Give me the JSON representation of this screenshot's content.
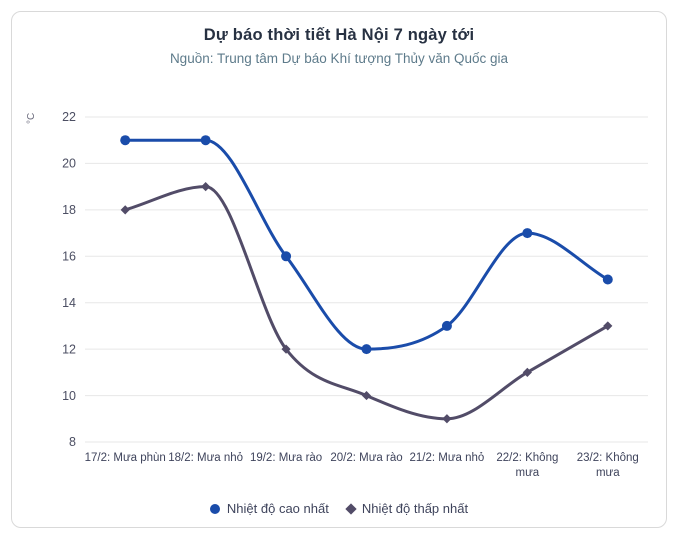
{
  "card": {
    "title": "Dự báo thời tiết Hà Nội 7 ngày tới",
    "subtitle": "Nguồn: Trung tâm Dự báo Khí tượng Thủy văn Quốc gia"
  },
  "chart_data": {
    "type": "line",
    "title": "Dự báo thời tiết Hà Nội 7 ngày tới",
    "subtitle": "Nguồn: Trung tâm Dự báo Khí tượng Thủy văn Quốc gia",
    "categories": [
      "17/2: Mưa phùn",
      "18/2: Mưa nhỏ",
      "19/2: Mưa rào",
      "20/2: Mưa rào",
      "21/2: Mưa nhỏ",
      "22/2: Không mưa",
      "23/2: Không mưa"
    ],
    "category_display_lines": [
      [
        "17/2: Mưa phùn"
      ],
      [
        "18/2: Mưa nhỏ"
      ],
      [
        "19/2: Mưa rào"
      ],
      [
        "20/2: Mưa rào"
      ],
      [
        "21/2: Mưa nhỏ"
      ],
      [
        "22/2: Không",
        "mưa"
      ],
      [
        "23/2: Không",
        "mưa"
      ]
    ],
    "series": [
      {
        "name": "Nhiệt độ cao nhất",
        "values": [
          21,
          21,
          16,
          12,
          13,
          17,
          15
        ],
        "color": "#1a4caa",
        "marker": "circle"
      },
      {
        "name": "Nhiệt độ thấp nhất",
        "values": [
          18,
          19,
          12,
          10,
          9,
          11,
          13
        ],
        "color": "#524c68",
        "marker": "diamond"
      }
    ],
    "xlabel": "",
    "ylabel": "°C",
    "ylim": [
      8,
      22
    ],
    "yticks": [
      22,
      20,
      18,
      16,
      14,
      12,
      10,
      8
    ],
    "grid": "horizontal-only",
    "legend_position": "bottom",
    "interpolation": "monotone"
  },
  "colors": {
    "series_high": "#1a4caa",
    "series_low": "#524c68",
    "gridline": "#e7e7e7",
    "ytick_text": "#4c4f63",
    "xtick_text": "#3f445c",
    "yunit_text": "#6b6b7d",
    "title_text": "#273142",
    "subtitle_text": "#5e7b8b",
    "card_border": "#d9d9d9",
    "background": "#ffffff"
  }
}
